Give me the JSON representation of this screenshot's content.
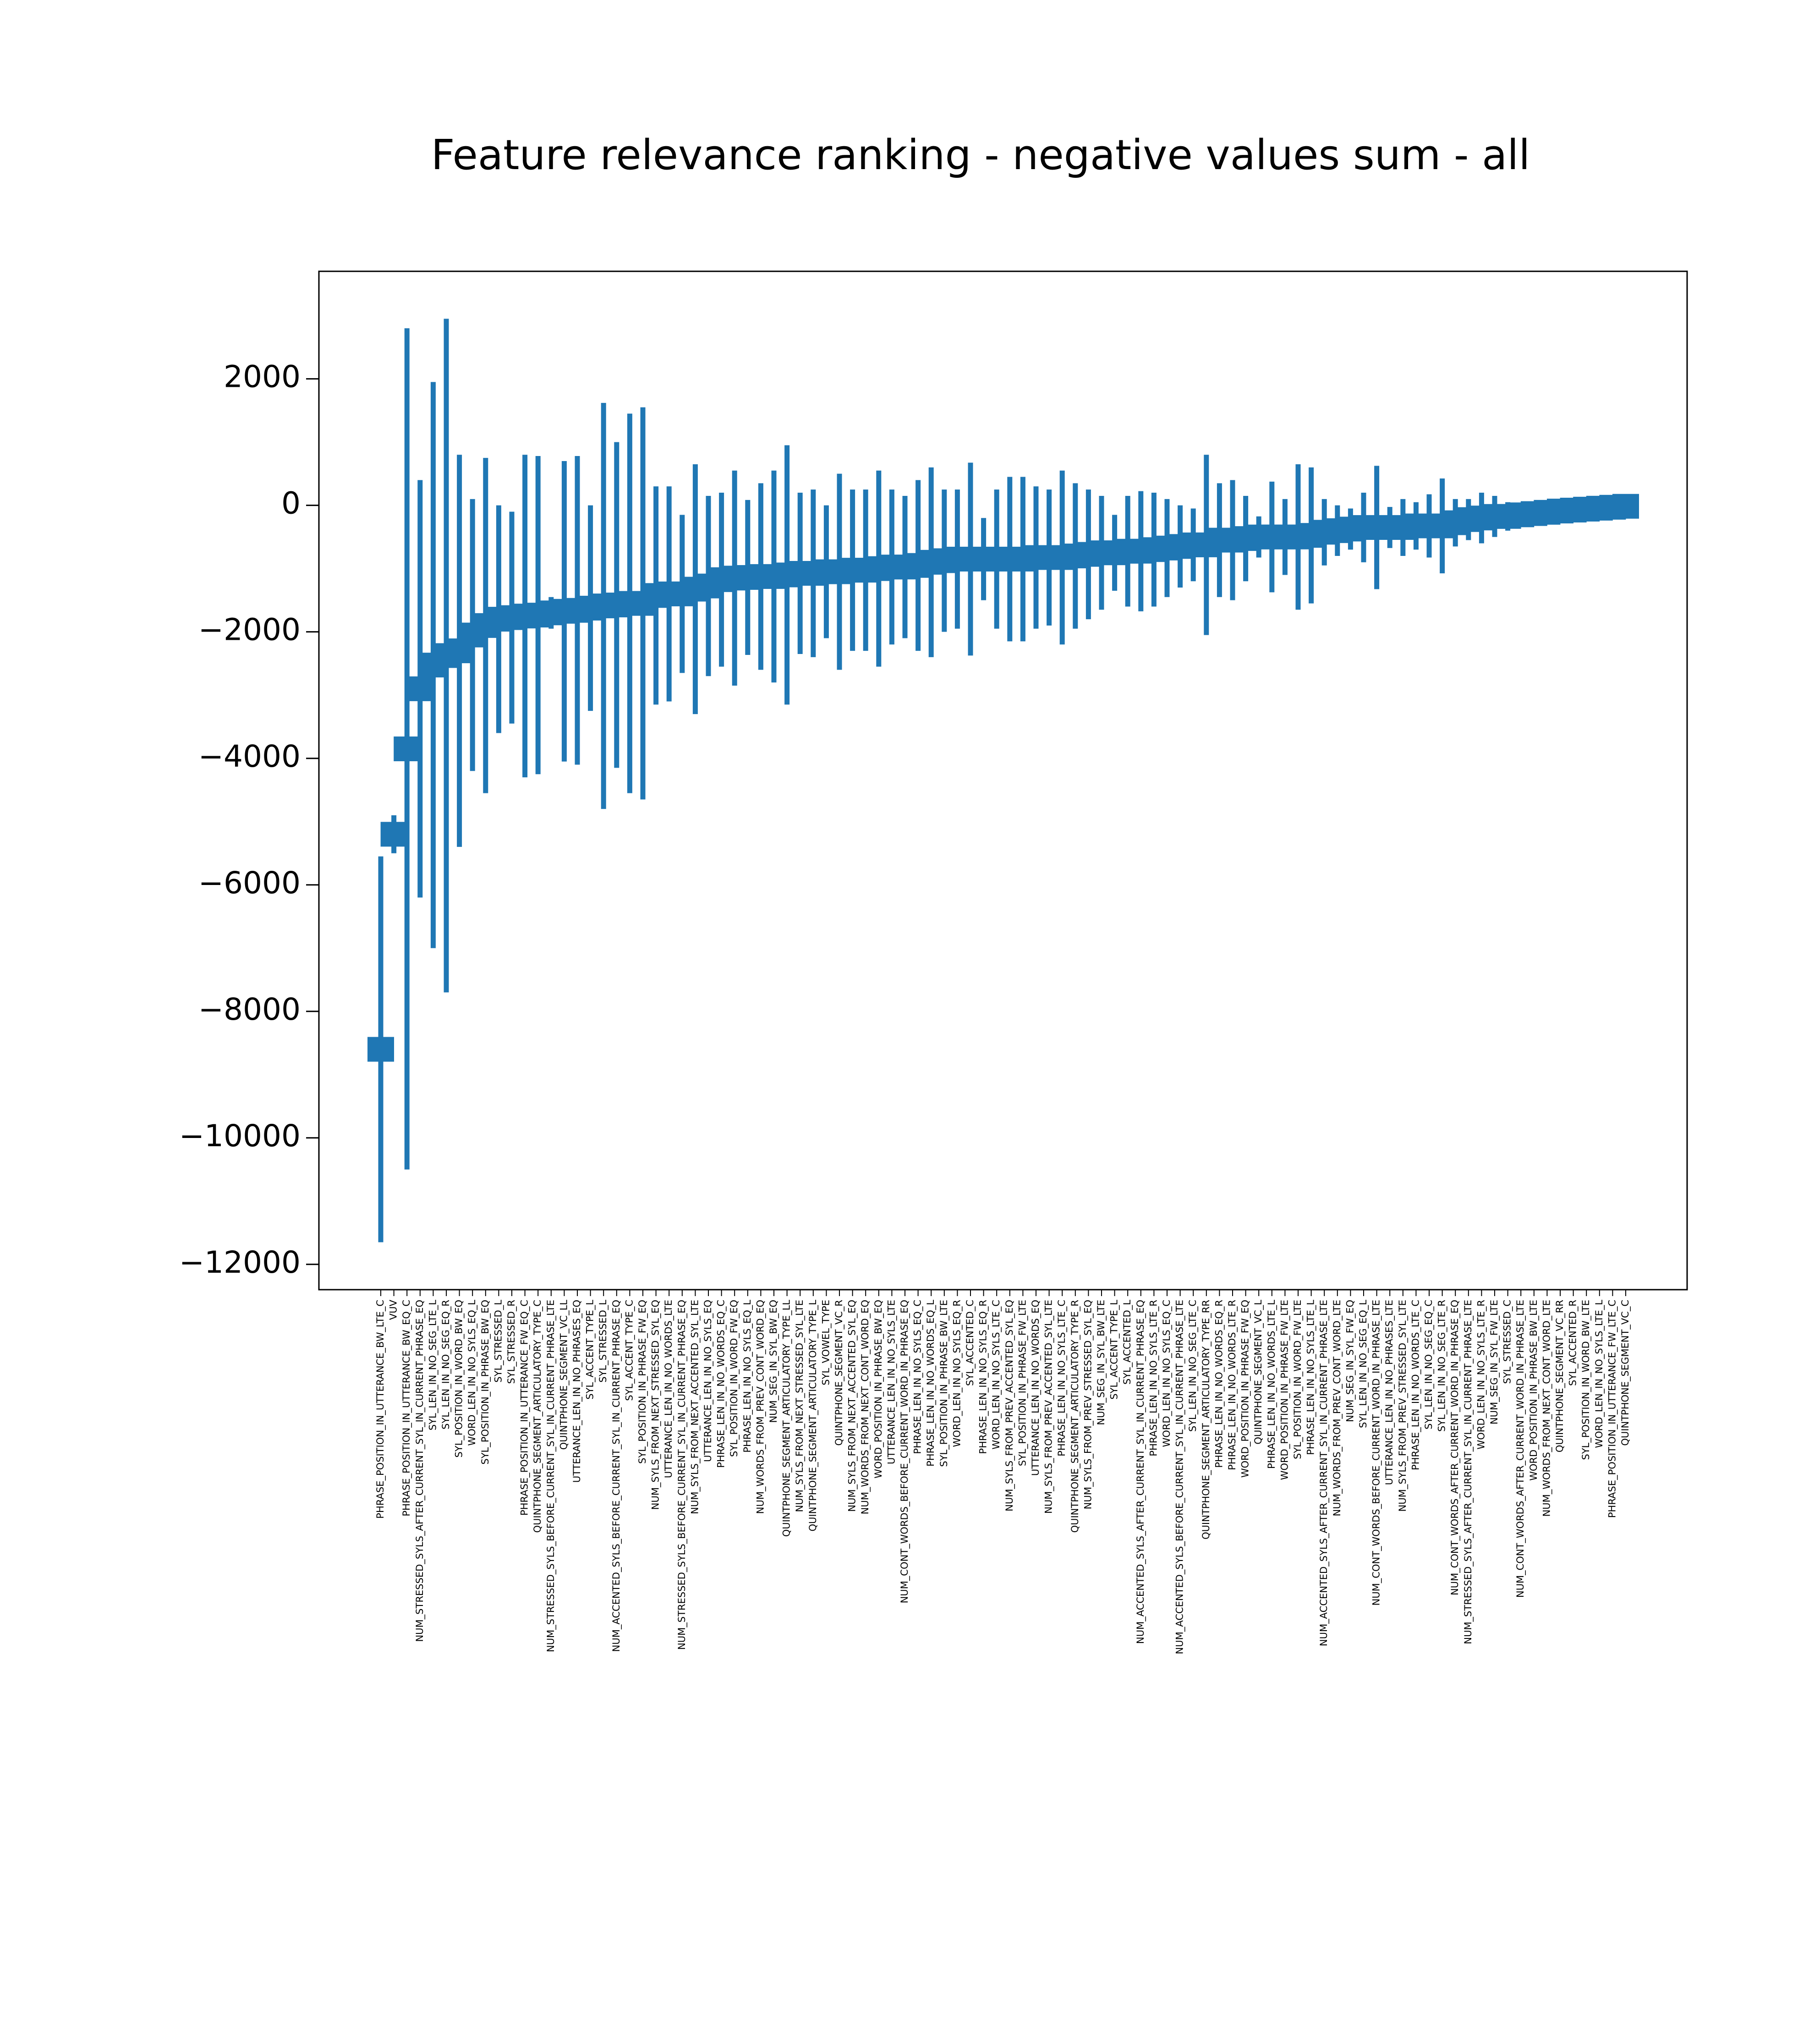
{
  "chart_data": {
    "type": "errorbar",
    "title": "Feature relevance ranking - negative values sum - all",
    "color": "#1f77b4",
    "categories": [
      "PHRASE_POSITION_IN_UTTERANCE_BW_LTE_C",
      "VUV",
      "PHRASE_POSITION_IN_UTTERANCE_BW_EQ_C",
      "NUM_STRESSED_SYLS_AFTER_CURRENT_SYL_IN_CURRENT_PHRASE_EQ",
      "SYL_LEN_IN_NO_SEG_LTE_L",
      "SYL_LEN_IN_NO_SEG_EQ_R",
      "SYL_POSITION_IN_WORD_BW_EQ",
      "WORD_LEN_IN_NO_SYLS_EQ_L",
      "SYL_POSITION_IN_PHRASE_BW_EQ",
      "SYL_STRESSED_L",
      "SYL_STRESSED_R",
      "PHRASE_POSITION_IN_UTTERANCE_FW_EQ_C",
      "QUINTPHONE_SEGMENT_ARTICULATORY_TYPE_C",
      "NUM_STRESSED_SYLS_BEFORE_CURRENT_SYL_IN_CURRENT_PHRASE_LTE",
      "QUINTPHONE_SEGMENT_VC_LL",
      "UTTERANCE_LEN_IN_NO_PHRASES_EQ",
      "SYL_ACCENT_TYPE_L",
      "SYL_STRESSED_L",
      "NUM_ACCENTED_SYLS_BEFORE_CURRENT_SYL_IN_CURRENT_PHRASE_EQ",
      "SYL_ACCENT_TYPE_C",
      "SYL_POSITION_IN_PHRASE_FW_EQ",
      "NUM_SYLS_FROM_NEXT_STRESSED_SYL_EQ",
      "UTTERANCE_LEN_IN_NO_WORDS_LTE",
      "NUM_STRESSED_SYLS_BEFORE_CURRENT_SYL_IN_CURRENT_PHRASE_EQ",
      "NUM_SYLS_FROM_NEXT_ACCENTED_SYL_LTE",
      "UTTERANCE_LEN_IN_NO_SYLS_EQ",
      "PHRASE_LEN_IN_NO_WORDS_EQ_C",
      "SYL_POSITION_IN_WORD_FW_EQ",
      "PHRASE_LEN_IN_NO_SYLS_EQ_L",
      "NUM_WORDS_FROM_PREV_CONT_WORD_EQ",
      "NUM_SEG_IN_SYL_BW_EQ",
      "QUINTPHONE_SEGMENT_ARTICULATORY_TYPE_LL",
      "NUM_SYLS_FROM_NEXT_STRESSED_SYL_LTE",
      "QUINTPHONE_SEGMENT_ARTICULATORY_TYPE_L",
      "SYL_VOWEL_TYPE",
      "QUINTPHONE_SEGMENT_VC_R",
      "NUM_SYLS_FROM_NEXT_ACCENTED_SYL_EQ",
      "NUM_WORDS_FROM_NEXT_CONT_WORD_EQ",
      "WORD_POSITION_IN_PHRASE_BW_EQ",
      "UTTERANCE_LEN_IN_NO_SYLS_LTE",
      "NUM_CONT_WORDS_BEFORE_CURRENT_WORD_IN_PHRASE_EQ",
      "PHRASE_LEN_IN_NO_SYLS_EQ_C",
      "PHRASE_LEN_IN_NO_WORDS_EQ_L",
      "SYL_POSITION_IN_PHRASE_BW_LTE",
      "WORD_LEN_IN_NO_SYLS_EQ_R",
      "SYL_ACCENTED_C",
      "PHRASE_LEN_IN_NO_SYLS_EQ_R",
      "WORD_LEN_IN_NO_SYLS_LTE_C",
      "NUM_SYLS_FROM_PREV_ACCENTED_SYL_EQ",
      "SYL_POSITION_IN_PHRASE_FW_LTE",
      "UTTERANCE_LEN_IN_NO_WORDS_EQ",
      "NUM_SYLS_FROM_PREV_ACCENTED_SYL_LTE",
      "PHRASE_LEN_IN_NO_SYLS_LTE_C",
      "QUINTPHONE_SEGMENT_ARTICULATORY_TYPE_R",
      "NUM_SYLS_FROM_PREV_STRESSED_SYL_EQ",
      "NUM_SEG_IN_SYL_BW_LTE",
      "SYL_ACCENT_TYPE_L",
      "SYL_ACCENTED_L",
      "NUM_ACCENTED_SYLS_AFTER_CURRENT_SYL_IN_CURRENT_PHRASE_EQ",
      "PHRASE_LEN_IN_NO_SYLS_LTE_R",
      "WORD_LEN_IN_NO_SYLS_EQ_C",
      "NUM_ACCENTED_SYLS_BEFORE_CURRENT_SYL_IN_CURRENT_PHRASE_LTE",
      "SYL_LEN_IN_NO_SEG_LTE_C",
      "QUINTPHONE_SEGMENT_ARTICULATORY_TYPE_RR",
      "PHRASE_LEN_IN_NO_WORDS_EQ_R",
      "PHRASE_LEN_IN_NO_WORDS_LTE_R",
      "WORD_POSITION_IN_PHRASE_FW_EQ",
      "QUINTPHONE_SEGMENT_VC_L",
      "PHRASE_LEN_IN_NO_WORDS_LTE_L",
      "WORD_POSITION_IN_PHRASE_FW_LTE",
      "SYL_POSITION_IN_WORD_FW_LTE",
      "PHRASE_LEN_IN_NO_SYLS_LTE_L",
      "NUM_ACCENTED_SYLS_AFTER_CURRENT_SYL_IN_CURRENT_PHRASE_LTE",
      "NUM_WORDS_FROM_PREV_CONT_WORD_LTE",
      "NUM_SEG_IN_SYL_FW_EQ",
      "SYL_LEN_IN_NO_SEG_EQ_L",
      "NUM_CONT_WORDS_BEFORE_CURRENT_WORD_IN_PHRASE_LTE",
      "UTTERANCE_LEN_IN_NO_PHRASES_LTE",
      "NUM_SYLS_FROM_PREV_STRESSED_SYL_LTE",
      "PHRASE_LEN_IN_NO_WORDS_LTE_C",
      "SYL_LEN_IN_NO_SEG_EQ_C",
      "SYL_LEN_IN_NO_SEG_LTE_R",
      "NUM_CONT_WORDS_AFTER_CURRENT_WORD_IN_PHRASE_EQ",
      "NUM_STRESSED_SYLS_AFTER_CURRENT_SYL_IN_CURRENT_PHRASE_LTE",
      "WORD_LEN_IN_NO_SYLS_LTE_R",
      "NUM_SEG_IN_SYL_FW_LTE",
      "SYL_STRESSED_C",
      "NUM_CONT_WORDS_AFTER_CURRENT_WORD_IN_PHRASE_LTE",
      "WORD_POSITION_IN_PHRASE_BW_LTE",
      "NUM_WORDS_FROM_NEXT_CONT_WORD_LTE",
      "QUINTPHONE_SEGMENT_VC_RR",
      "SYL_ACCENTED_R",
      "SYL_POSITION_IN_WORD_BW_LTE",
      "WORD_LEN_IN_NO_SYLS_LTE_L",
      "PHRASE_POSITION_IN_UTTERANCE_FW_LTE_C",
      "QUINTPHONE_SEGMENT_VC_C"
    ],
    "values": [
      -8600,
      -5200,
      -3850,
      -2900,
      -2525,
      -2375,
      -2300,
      -2050,
      -1900,
      -1800,
      -1775,
      -1750,
      -1735,
      -1700,
      -1675,
      -1660,
      -1625,
      -1590,
      -1575,
      -1550,
      -1550,
      -1425,
      -1400,
      -1400,
      -1325,
      -1275,
      -1175,
      -1150,
      -1140,
      -1125,
      -1125,
      -1100,
      -1075,
      -1075,
      -1050,
      -1050,
      -1025,
      -1025,
      -1000,
      -975,
      -975,
      -950,
      -900,
      -875,
      -850,
      -850,
      -850,
      -850,
      -850,
      -850,
      -825,
      -825,
      -825,
      -800,
      -775,
      -750,
      -750,
      -725,
      -725,
      -700,
      -675,
      -650,
      -625,
      -625,
      -550,
      -550,
      -525,
      -500,
      -500,
      -500,
      -500,
      -475,
      -425,
      -400,
      -375,
      -350,
      -350,
      -350,
      -350,
      -325,
      -325,
      -325,
      -275,
      -225,
      -200,
      -175,
      -175,
      -150,
      -130,
      -110,
      -90,
      -75,
      -60,
      -45,
      -30,
      -15
    ],
    "errors": [
      3050,
      300,
      6650,
      3300,
      4475,
      5325,
      3100,
      2150,
      2650,
      1800,
      1675,
      2550,
      2515,
      250,
      2375,
      2440,
      1625,
      3210,
      2575,
      3000,
      3100,
      1725,
      1700,
      1250,
      1975,
      1425,
      1375,
      1700,
      1225,
      1475,
      1675,
      2050,
      1275,
      1325,
      1050,
      1550,
      1275,
      1275,
      1550,
      1225,
      1125,
      1350,
      1500,
      1125,
      1100,
      1525,
      650,
      1100,
      1300,
      1300,
      1125,
      1075,
      1375,
      1150,
      1025,
      900,
      600,
      875,
      950,
      900,
      775,
      650,
      575,
      1425,
      900,
      950,
      675,
      325,
      875,
      600,
      1150,
      1075,
      525,
      400,
      325,
      550,
      975,
      325,
      450,
      375,
      500,
      750,
      375,
      325,
      400,
      325,
      225,
      150,
      60,
      50,
      50,
      40,
      40,
      30,
      30,
      20
    ],
    "ylim": [
      -12400,
      3700
    ],
    "yticks": [
      {
        "value": -12000,
        "label": "−12000"
      },
      {
        "value": -10000,
        "label": "−10000"
      },
      {
        "value": -8000,
        "label": "−8000"
      },
      {
        "value": -6000,
        "label": "−6000"
      },
      {
        "value": -4000,
        "label": "−4000"
      },
      {
        "value": -2000,
        "label": "−2000"
      },
      0,
      2000
    ]
  }
}
